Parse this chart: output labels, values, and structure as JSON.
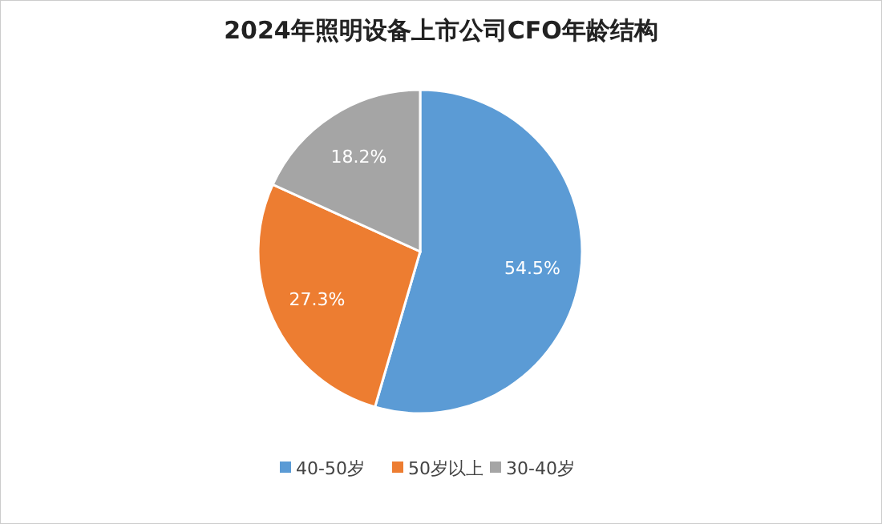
{
  "chart_data": {
    "type": "pie",
    "title": "2024年照明设备上市公司CFO年龄结构",
    "categories": [
      "40-50岁",
      "50岁以上",
      "30-40岁"
    ],
    "values": [
      54.5,
      27.3,
      18.2
    ],
    "colors": [
      "#5b9bd5",
      "#ed7d31",
      "#a5a5a5"
    ],
    "value_labels": [
      "54.5%",
      "27.3%",
      "18.2%"
    ],
    "legend": "bottom"
  }
}
